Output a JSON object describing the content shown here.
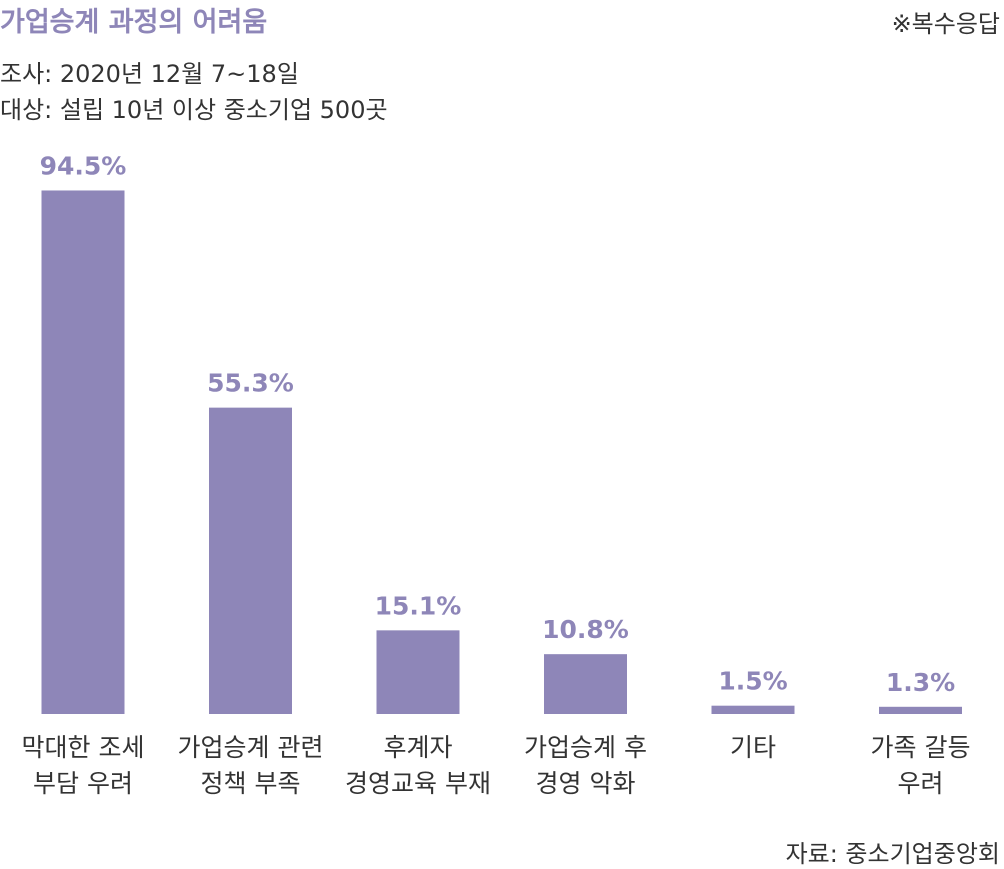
{
  "title": "가업승계 과정의 어려움",
  "note": "※복수응답",
  "survey": {
    "period": "조사: 2020년 12월 7~18일",
    "target": "대상: 설립 10년 이상 중소기업 500곳"
  },
  "source": "자료: 중소기업중앙회",
  "colors": {
    "bar": "#8e86b8",
    "value_label": "#8e86b8"
  },
  "chart_data": {
    "type": "bar",
    "title": "가업승계 과정의 어려움",
    "categories": [
      [
        "막대한 조세",
        "부담 우려"
      ],
      [
        "가업승계 관련",
        "정책 부족"
      ],
      [
        "후계자",
        "경영교육 부재"
      ],
      [
        "가업승계 후",
        "경영 악화"
      ],
      [
        "기타"
      ],
      [
        "가족 갈등",
        "우려"
      ]
    ],
    "values": [
      94.5,
      55.3,
      15.1,
      10.8,
      1.5,
      1.3
    ],
    "value_labels": [
      "94.5%",
      "55.3%",
      "15.1%",
      "10.8%",
      "1.5%",
      "1.3%"
    ],
    "unit": "%",
    "ylim": [
      0,
      100
    ],
    "grid": false,
    "legend": "none"
  }
}
